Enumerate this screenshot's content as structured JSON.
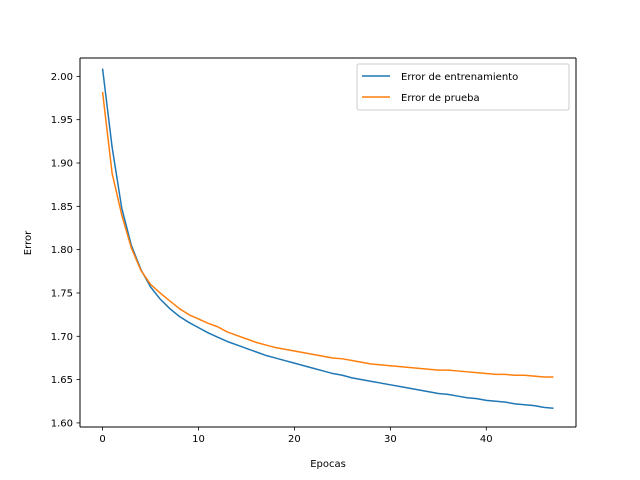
{
  "chart_data": {
    "type": "line",
    "title": "",
    "xlabel": "Epocas",
    "ylabel": "Error",
    "xlim": [
      -2.35,
      49.35
    ],
    "ylim": [
      1.5953,
      2.0212
    ],
    "xticks": [
      0,
      10,
      20,
      30,
      40
    ],
    "xtick_labels": [
      "0",
      "10",
      "20",
      "30",
      "40"
    ],
    "yticks": [
      1.6,
      1.65,
      1.7,
      1.75,
      1.8,
      1.85,
      1.9,
      1.95,
      2.0
    ],
    "ytick_labels": [
      "1.60",
      "1.65",
      "1.70",
      "1.75",
      "1.80",
      "1.85",
      "1.90",
      "1.95",
      "2.00"
    ],
    "grid": false,
    "legend_position": "top-right",
    "x": [
      0,
      1,
      2,
      3,
      4,
      5,
      6,
      7,
      8,
      9,
      10,
      11,
      12,
      13,
      14,
      15,
      16,
      17,
      18,
      19,
      20,
      21,
      22,
      23,
      24,
      25,
      26,
      27,
      28,
      29,
      30,
      31,
      32,
      33,
      34,
      35,
      36,
      37,
      38,
      39,
      40,
      41,
      42,
      43,
      44,
      45,
      46,
      47
    ],
    "series": [
      {
        "name": "Error de entrenamiento",
        "color": "#1f77b4",
        "values": [
          2.009,
          1.918,
          1.848,
          1.805,
          1.777,
          1.757,
          1.743,
          1.732,
          1.723,
          1.716,
          1.71,
          1.704,
          1.699,
          1.694,
          1.69,
          1.686,
          1.682,
          1.678,
          1.675,
          1.672,
          1.669,
          1.666,
          1.663,
          1.66,
          1.657,
          1.655,
          1.652,
          1.65,
          1.648,
          1.646,
          1.644,
          1.642,
          1.64,
          1.638,
          1.636,
          1.634,
          1.633,
          1.631,
          1.629,
          1.628,
          1.626,
          1.625,
          1.624,
          1.622,
          1.621,
          1.62,
          1.618,
          1.617
        ]
      },
      {
        "name": "Error de prueba",
        "color": "#ff7f0e",
        "values": [
          1.982,
          1.888,
          1.84,
          1.802,
          1.776,
          1.76,
          1.75,
          1.741,
          1.732,
          1.725,
          1.72,
          1.715,
          1.711,
          1.705,
          1.701,
          1.697,
          1.693,
          1.69,
          1.687,
          1.685,
          1.683,
          1.681,
          1.679,
          1.677,
          1.675,
          1.674,
          1.672,
          1.67,
          1.668,
          1.667,
          1.666,
          1.665,
          1.664,
          1.663,
          1.662,
          1.661,
          1.661,
          1.66,
          1.659,
          1.658,
          1.657,
          1.656,
          1.656,
          1.655,
          1.655,
          1.654,
          1.653,
          1.653
        ]
      }
    ]
  }
}
